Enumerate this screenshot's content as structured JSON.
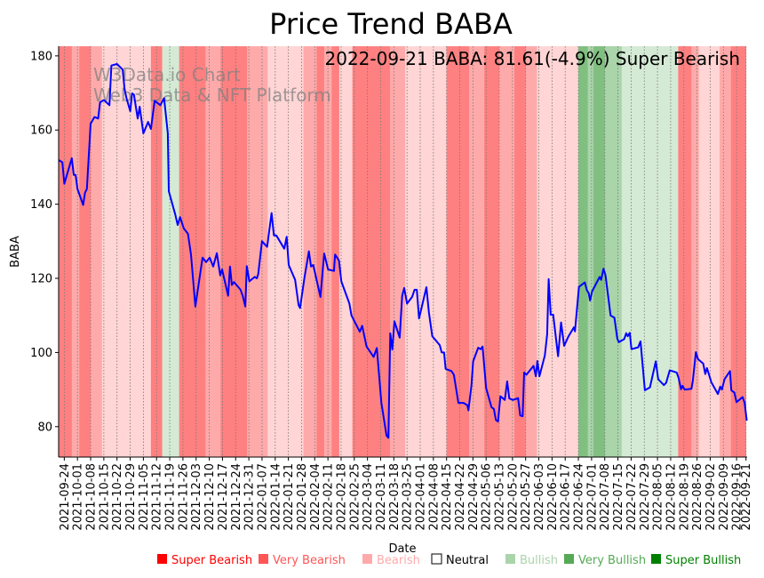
{
  "chart_data": {
    "type": "line",
    "title": "Price Trend BABA",
    "xlabel": "Date",
    "ylabel": "BABA",
    "annotation": "2022-09-21 BABA: 81.61(-4.9%) Super Bearish",
    "watermark": [
      "W3Data.io Chart",
      "Web3 Data & NFT Platform"
    ],
    "start_date": "2021-09-21",
    "x_unit": "days since start_date",
    "xlim": [
      0,
      365.6
    ],
    "ylim": [
      71.8,
      182.6
    ],
    "yticks": [
      80,
      100,
      120,
      140,
      160,
      180
    ],
    "grid": "vertical dotted at weekly ticks",
    "xtick_labels": [
      "2021-09-24",
      "2021-10-01",
      "2021-10-08",
      "2021-10-15",
      "2021-10-22",
      "2021-10-29",
      "2021-11-05",
      "2021-11-12",
      "2021-11-19",
      "2021-11-26",
      "2021-12-03",
      "2021-12-10",
      "2021-12-17",
      "2021-12-24",
      "2021-12-31",
      "2022-01-07",
      "2022-01-14",
      "2022-01-21",
      "2022-01-28",
      "2022-02-04",
      "2022-02-11",
      "2022-02-18",
      "2022-02-25",
      "2022-03-04",
      "2022-03-11",
      "2022-03-18",
      "2022-03-25",
      "2022-04-01",
      "2022-04-08",
      "2022-04-15",
      "2022-04-22",
      "2022-04-29",
      "2022-05-06",
      "2022-05-13",
      "2022-05-20",
      "2022-05-27",
      "2022-06-03",
      "2022-06-10",
      "2022-06-17",
      "2022-06-24",
      "2022-07-01",
      "2022-07-08",
      "2022-07-15",
      "2022-07-22",
      "2022-07-29",
      "2022-08-05",
      "2022-08-12",
      "2022-08-19",
      "2022-08-26",
      "2022-09-02",
      "2022-09-09",
      "2022-09-16",
      "2022-09-21"
    ],
    "xtick_days": [
      3,
      10,
      17,
      24,
      31,
      38,
      45,
      52,
      59,
      66,
      73,
      80,
      87,
      94,
      101,
      108,
      115,
      122,
      129,
      136,
      143,
      150,
      157,
      164,
      171,
      178,
      185,
      192,
      199,
      206,
      213,
      220,
      227,
      234,
      241,
      248,
      255,
      262,
      269,
      276,
      283,
      290,
      297,
      304,
      311,
      318,
      325,
      332,
      339,
      346,
      353,
      360,
      365
    ],
    "series": [
      {
        "name": "BABA",
        "color": "#0000ff",
        "days": [
          0,
          2,
          3,
          7,
          8,
          9,
          10,
          13,
          14,
          15,
          17,
          19,
          21,
          22,
          24,
          27,
          28,
          31,
          34,
          35,
          36,
          38,
          39,
          40,
          42,
          43,
          45,
          47.5,
          49,
          51,
          54,
          56,
          58,
          58.5,
          62,
          63.2,
          64.5,
          66.4,
          68.7,
          70.3,
          72.6,
          76.4,
          78.3,
          80.2,
          82.1,
          84,
          85.8,
          86.8,
          90,
          91,
          92,
          93.1,
          96.6,
          97.8,
          99.1,
          99.9,
          101.3,
          104.1,
          105.3,
          106,
          108,
          110.7,
          113.1,
          114.3,
          115.6,
          119.8,
          121.1,
          122.2,
          125.6,
          127.4,
          128.2,
          130.5,
          132.9,
          134,
          135.2,
          139,
          141,
          143.1,
          146.2,
          146.8,
          148.9,
          150.1,
          154.4,
          155.5,
          159.9,
          161.2,
          163.5,
          167.3,
          169,
          171.4,
          174.1,
          175.1,
          176.1,
          177.2,
          178.3,
          181.1,
          182.4,
          183.5,
          185,
          187.7,
          189,
          190.2,
          191.4,
          195.3,
          196.6,
          198.4,
          202.4,
          203.4,
          204.7,
          205.5,
          208.6,
          209.9,
          212.3,
          215,
          217,
          217.6,
          219.2,
          220.1,
          222.8,
          224.1,
          225.1,
          227,
          229.9,
          231.1,
          232.2,
          233.3,
          234.6,
          236.9,
          238.2,
          239.3,
          241.2,
          244,
          245.1,
          246.4,
          247.2,
          248.4,
          252.2,
          253.4,
          254.2,
          255.3,
          258.2,
          259.4,
          260.2,
          261.3,
          262.6,
          265.2,
          266.8,
          268.4,
          270.8,
          273.6,
          274.2,
          276.3,
          279.4,
          280.5,
          281.5,
          282.2,
          283.3,
          287.3,
          288.1,
          289.3,
          290.4,
          293.1,
          295.1,
          296.7,
          297.5,
          300.3,
          301.4,
          302.2,
          303.3,
          304.2,
          307.7,
          309,
          311.3,
          314,
          317.1,
          318.4,
          321.4,
          322.6,
          324.5,
          328.2,
          329.2,
          330.5,
          331.3,
          332.4,
          336,
          336.8,
          338.4,
          339.5,
          342.3,
          343.4,
          344.3,
          346.6,
          350.1,
          351.3,
          352.2,
          353.6,
          356.5,
          357.2,
          358.8,
          360,
          363.2,
          364.3,
          365.4
        ],
        "values": [
          151.9,
          151.3,
          145.5,
          152.4,
          147.9,
          147.9,
          144.1,
          139.8,
          143.1,
          144.1,
          161.7,
          163.5,
          163.1,
          167.5,
          168.1,
          166.7,
          177.4,
          177.8,
          176.3,
          171.1,
          168.7,
          165.1,
          169.9,
          169.5,
          163.1,
          166.3,
          159.1,
          162.2,
          160.3,
          167.9,
          166.7,
          168.6,
          159.1,
          143.5,
          137.1,
          134.4,
          136.5,
          133.5,
          132.0,
          126.4,
          112.4,
          125.6,
          124.4,
          125.6,
          123.2,
          126.8,
          120.8,
          122.4,
          115.3,
          123.2,
          118.2,
          119.0,
          116.9,
          115.2,
          112.4,
          123.3,
          119.2,
          120.4,
          120.0,
          121.2,
          130.0,
          128.5,
          137.6,
          131.6,
          131.6,
          128.0,
          131.2,
          123.6,
          119.6,
          112.8,
          112.0,
          120.0,
          127.3,
          123.2,
          123.6,
          115.0,
          126.7,
          122.4,
          122.0,
          126.4,
          124.8,
          119.2,
          113.2,
          110.0,
          105.6,
          107.2,
          101.6,
          98.8,
          101.2,
          86.4,
          77.6,
          77.0,
          105.2,
          100.8,
          108.4,
          104.0,
          115.3,
          117.4,
          113.2,
          115.0,
          116.9,
          116.9,
          109.2,
          117.6,
          110.8,
          104.4,
          102.0,
          100.0,
          100.0,
          95.6,
          95.0,
          94.0,
          86.4,
          86.4,
          85.8,
          84.4,
          91.2,
          97.6,
          101.3,
          100.9,
          101.6,
          90.4,
          85.2,
          84.8,
          81.8,
          81.4,
          88.2,
          87.2,
          92.2,
          87.6,
          87.2,
          87.7,
          83.0,
          82.8,
          94.6,
          94.0,
          96.4,
          93.6,
          97.7,
          93.6,
          99.2,
          104.9,
          119.8,
          110.2,
          110.2,
          99.0,
          108.1,
          101.8,
          104.4,
          106.8,
          105.7,
          117.7,
          118.9,
          116.8,
          116.0,
          114.0,
          116.5,
          120.4,
          119.6,
          122.6,
          120.8,
          110.0,
          109.4,
          103.7,
          102.8,
          103.6,
          105.2,
          104.4,
          105.3,
          100.9,
          101.4,
          103.0,
          89.8,
          90.6,
          97.6,
          92.8,
          91.2,
          91.8,
          95.2,
          94.6,
          93.2,
          90.1,
          91.0,
          90.0,
          90.2,
          92.4,
          100.1,
          98.2,
          97.0,
          94.2,
          95.8,
          92.0,
          88.8,
          90.8,
          90.0,
          92.8,
          95.0,
          89.8,
          89.2,
          86.6,
          88.0,
          86.4,
          81.61
        ]
      }
    ],
    "sentiment_bands": [
      {
        "from": "2021-09-21",
        "to": "2021-09-28",
        "level": "super_bearish"
      },
      {
        "from": "2021-09-28",
        "to": "2021-10-02",
        "level": "very_bearish"
      },
      {
        "from": "2021-10-02",
        "to": "2021-10-08",
        "level": "super_bearish"
      },
      {
        "from": "2021-10-08",
        "to": "2021-10-14",
        "level": "very_bearish"
      },
      {
        "from": "2021-10-14",
        "to": "2021-11-09",
        "level": "bearish"
      },
      {
        "from": "2021-11-09",
        "to": "2021-11-15",
        "level": "super_bearish"
      },
      {
        "from": "2021-11-15",
        "to": "2021-11-24",
        "level": "bullish"
      },
      {
        "from": "2021-11-24",
        "to": "2021-12-08",
        "level": "super_bearish"
      },
      {
        "from": "2021-12-08",
        "to": "2021-12-16",
        "level": "very_bearish"
      },
      {
        "from": "2021-12-16",
        "to": "2021-12-30",
        "level": "super_bearish"
      },
      {
        "from": "2021-12-30",
        "to": "2022-01-10",
        "level": "very_bearish"
      },
      {
        "from": "2022-01-10",
        "to": "2022-01-29",
        "level": "bearish"
      },
      {
        "from": "2022-01-29",
        "to": "2022-02-05",
        "level": "very_bearish"
      },
      {
        "from": "2022-02-05",
        "to": "2022-02-09",
        "level": "super_bearish"
      },
      {
        "from": "2022-02-09",
        "to": "2022-02-13",
        "level": "very_bearish"
      },
      {
        "from": "2022-02-13",
        "to": "2022-02-17",
        "level": "super_bearish"
      },
      {
        "from": "2022-02-17",
        "to": "2022-02-24",
        "level": "bearish"
      },
      {
        "from": "2022-02-24",
        "to": "2022-03-16",
        "level": "super_bearish"
      },
      {
        "from": "2022-03-16",
        "to": "2022-03-24",
        "level": "very_bearish"
      },
      {
        "from": "2022-03-24",
        "to": "2022-04-15",
        "level": "bearish"
      },
      {
        "from": "2022-04-15",
        "to": "2022-04-27",
        "level": "super_bearish"
      },
      {
        "from": "2022-04-27",
        "to": "2022-05-05",
        "level": "very_bearish"
      },
      {
        "from": "2022-05-05",
        "to": "2022-05-13",
        "level": "super_bearish"
      },
      {
        "from": "2022-05-13",
        "to": "2022-05-21",
        "level": "very_bearish"
      },
      {
        "from": "2022-05-21",
        "to": "2022-05-27",
        "level": "super_bearish"
      },
      {
        "from": "2022-05-27",
        "to": "2022-06-02",
        "level": "very_bearish"
      },
      {
        "from": "2022-06-02",
        "to": "2022-06-24",
        "level": "bearish"
      },
      {
        "from": "2022-06-24",
        "to": "2022-06-29",
        "level": "super_bullish"
      },
      {
        "from": "2022-06-29",
        "to": "2022-07-02",
        "level": "very_bullish"
      },
      {
        "from": "2022-07-02",
        "to": "2022-07-08",
        "level": "super_bullish"
      },
      {
        "from": "2022-07-08",
        "to": "2022-07-17",
        "level": "very_bullish"
      },
      {
        "from": "2022-07-17",
        "to": "2022-08-16",
        "level": "bullish"
      },
      {
        "from": "2022-08-16",
        "to": "2022-08-23",
        "level": "super_bearish"
      },
      {
        "from": "2022-08-23",
        "to": "2022-08-27",
        "level": "very_bearish"
      },
      {
        "from": "2022-08-27",
        "to": "2022-09-07",
        "level": "bearish"
      },
      {
        "from": "2022-09-07",
        "to": "2022-09-13",
        "level": "very_bearish"
      },
      {
        "from": "2022-09-13",
        "to": "2022-09-21",
        "level": "super_bearish"
      }
    ],
    "band_colors": {
      "super_bearish": "#ff8080",
      "very_bearish": "#ffaaaa",
      "bearish": "#ffd5d5",
      "bullish": "#d5ead5",
      "very_bullish": "#aad4aa",
      "super_bullish": "#80bf80"
    },
    "legend": {
      "placement": "bottom",
      "items": [
        {
          "label": "Super Bearish",
          "color": "#ff0000"
        },
        {
          "label": "Very Bearish",
          "color": "#ff5555"
        },
        {
          "label": "Bearish",
          "color": "#ffaaaa"
        },
        {
          "label": "Neutral",
          "color": "#000000"
        },
        {
          "label": "Bullish",
          "color": "#aad4aa"
        },
        {
          "label": "Very Bullish",
          "color": "#55aa55"
        },
        {
          "label": "Super Bullish",
          "color": "#008000"
        }
      ]
    }
  }
}
